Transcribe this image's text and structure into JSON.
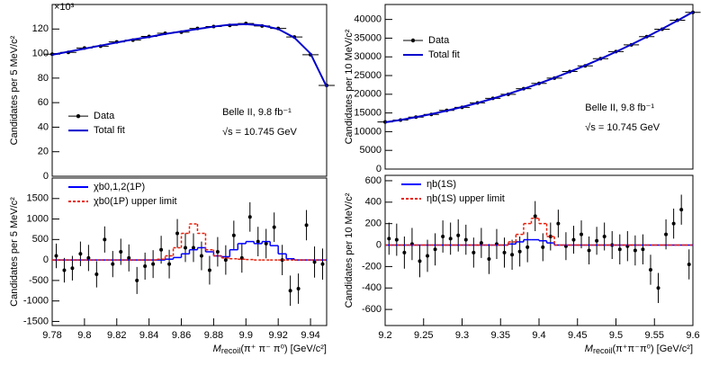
{
  "chart_data": [
    {
      "type": "line",
      "ylabel": "Candidates per 5 MeV/c²",
      "multiplier": "×10³",
      "annotations": [
        "Belle II, 9.8 fb⁻¹",
        "√s = 10.745 GeV"
      ],
      "legend": "center left",
      "xlim": [
        9.78,
        9.95
      ],
      "ylim": [
        0,
        140
      ],
      "yticks": [
        0,
        20,
        40,
        60,
        80,
        100,
        120
      ],
      "series": [
        {
          "name": "Data",
          "color": "#000000",
          "draw": "points",
          "x": [
            9.78,
            9.79,
            9.8,
            9.81,
            9.82,
            9.83,
            9.84,
            9.85,
            9.86,
            9.87,
            9.88,
            9.89,
            9.9,
            9.91,
            9.92,
            9.93,
            9.94,
            9.95
          ],
          "values": [
            99.5,
            101,
            104.5,
            106,
            109.5,
            111,
            114,
            116.5,
            117.5,
            120.5,
            122,
            123,
            124.5,
            122.5,
            120.5,
            113.5,
            99,
            74
          ]
        },
        {
          "name": "Total fit",
          "color": "#0000cc",
          "draw": "curve",
          "x": [
            9.78,
            9.79,
            9.8,
            9.81,
            9.82,
            9.83,
            9.84,
            9.85,
            9.86,
            9.87,
            9.88,
            9.89,
            9.9,
            9.91,
            9.92,
            9.93,
            9.94,
            9.95
          ],
          "values": [
            99,
            101.5,
            104,
            106.5,
            109,
            111.5,
            113.5,
            116,
            118,
            120,
            122,
            123.5,
            124,
            123,
            120,
            113,
            100,
            73
          ]
        }
      ]
    },
    {
      "type": "line",
      "ylabel": "Candidates per 5 MeV/c²",
      "legend": "top left",
      "xlabel": {
        "main": "M",
        "sub": "recoil",
        "rest": "(π⁺ π⁻ π⁰)  [GeV/c²]"
      },
      "xlim": [
        9.78,
        9.95
      ],
      "xticks": [
        9.78,
        9.8,
        9.82,
        9.84,
        9.86,
        9.88,
        9.9,
        9.92,
        9.94
      ],
      "ylim": [
        -1600,
        2000
      ],
      "yticks": [
        -1500,
        -1000,
        -500,
        0,
        500,
        1000,
        1500
      ],
      "x": [
        9.7825,
        9.7875,
        9.7925,
        9.7975,
        9.8025,
        9.8075,
        9.8125,
        9.8175,
        9.8225,
        9.8275,
        9.8325,
        9.8375,
        9.8425,
        9.8475,
        9.8525,
        9.8575,
        9.8625,
        9.8675,
        9.8725,
        9.8775,
        9.8825,
        9.8875,
        9.8925,
        9.8975,
        9.9025,
        9.9075,
        9.9125,
        9.9175,
        9.9225,
        9.9275,
        9.9325,
        9.9375,
        9.9425,
        9.9475
      ],
      "series": [
        {
          "draw": "points",
          "color": "#000000",
          "values": [
            100,
            -250,
            -200,
            150,
            50,
            -350,
            500,
            -100,
            200,
            50,
            -500,
            -150,
            -100,
            250,
            -100,
            650,
            300,
            300,
            100,
            -250,
            200,
            0,
            600,
            50,
            1050,
            450,
            400,
            800,
            0,
            -750,
            -700,
            850,
            -50,
            -100
          ],
          "errors": [
            300,
            300,
            300,
            300,
            320,
            320,
            320,
            320,
            320,
            330,
            330,
            330,
            340,
            340,
            350,
            350,
            350,
            350,
            350,
            350,
            360,
            360,
            360,
            360,
            360,
            360,
            360,
            360,
            370,
            370,
            370,
            370,
            380,
            380
          ]
        },
        {
          "name": "χb0,1,2(1P)",
          "color": "#0000ff",
          "draw": "steps",
          "values": [
            0,
            0,
            0,
            0,
            0,
            0,
            0,
            0,
            0,
            0,
            0,
            0,
            0,
            0,
            20,
            60,
            150,
            250,
            300,
            200,
            100,
            80,
            250,
            400,
            450,
            400,
            450,
            350,
            150,
            30,
            0,
            0,
            0,
            0
          ]
        },
        {
          "name": "χb0(1P) upper limit",
          "color": "#e8200c",
          "draw": "steps",
          "dashed": true,
          "values": [
            0,
            0,
            0,
            0,
            0,
            0,
            0,
            0,
            0,
            0,
            0,
            0,
            0,
            20,
            100,
            300,
            650,
            880,
            650,
            250,
            100,
            50,
            30,
            20,
            10,
            0,
            0,
            0,
            0,
            0,
            0,
            0,
            0,
            0
          ]
        }
      ]
    },
    {
      "type": "line",
      "ylabel": "Candidates per 10 MeV/c²",
      "annotations": [
        "Belle II, 9.8 fb⁻¹",
        "√s = 10.745 GeV"
      ],
      "legend": "upper left",
      "xlim": [
        9.2,
        9.6
      ],
      "ylim": [
        0,
        44000
      ],
      "yticks": [
        0,
        5000,
        10000,
        15000,
        20000,
        25000,
        30000,
        35000,
        40000
      ],
      "series": [
        {
          "name": "Data",
          "color": "#000000",
          "draw": "points",
          "x": [
            9.2,
            9.22,
            9.24,
            9.26,
            9.28,
            9.3,
            9.32,
            9.34,
            9.36,
            9.38,
            9.4,
            9.42,
            9.44,
            9.46,
            9.48,
            9.5,
            9.52,
            9.54,
            9.56,
            9.58,
            9.6
          ],
          "values": [
            12600,
            13100,
            13900,
            14600,
            15700,
            16500,
            17700,
            18900,
            20000,
            21500,
            22900,
            24300,
            26100,
            27600,
            29500,
            31400,
            33200,
            35400,
            37400,
            39800,
            41900
          ]
        },
        {
          "name": "Total fit",
          "color": "#0000cc",
          "draw": "curve",
          "x": [
            9.2,
            9.22,
            9.24,
            9.26,
            9.28,
            9.3,
            9.32,
            9.34,
            9.36,
            9.38,
            9.4,
            9.42,
            9.44,
            9.46,
            9.48,
            9.5,
            9.52,
            9.54,
            9.56,
            9.58,
            9.6
          ],
          "values": [
            12500,
            13144,
            13875,
            14694,
            15600,
            16594,
            17675,
            18844,
            20100,
            21444,
            22875,
            24394,
            26000,
            27694,
            29475,
            31344,
            33300,
            35344,
            37475,
            39694,
            42000
          ]
        }
      ]
    },
    {
      "type": "line",
      "ylabel": "Candidates per 10 MeV/c²",
      "legend": "top left",
      "xlabel": {
        "main": "M",
        "sub": "recoil",
        "rest": "(π⁺π⁻π⁰)  [GeV/c²]"
      },
      "xlim": [
        9.2,
        9.6
      ],
      "xticks": [
        9.2,
        9.25,
        9.3,
        9.35,
        9.4,
        9.45,
        9.5,
        9.55,
        9.6
      ],
      "ylim": [
        -750,
        650
      ],
      "yticks": [
        -600,
        -400,
        -200,
        0,
        200,
        400,
        600
      ],
      "x": [
        9.205,
        9.215,
        9.225,
        9.235,
        9.245,
        9.255,
        9.265,
        9.275,
        9.285,
        9.295,
        9.305,
        9.315,
        9.325,
        9.335,
        9.345,
        9.355,
        9.365,
        9.375,
        9.385,
        9.395,
        9.405,
        9.415,
        9.425,
        9.435,
        9.445,
        9.455,
        9.465,
        9.475,
        9.485,
        9.495,
        9.505,
        9.515,
        9.525,
        9.535,
        9.545,
        9.555,
        9.565,
        9.575,
        9.585,
        9.595
      ],
      "series": [
        {
          "draw": "points",
          "color": "#000000",
          "values": [
            60,
            50,
            -70,
            10,
            -150,
            -100,
            -40,
            80,
            60,
            90,
            50,
            -70,
            20,
            -130,
            10,
            -70,
            -90,
            -60,
            -20,
            270,
            -20,
            80,
            200,
            -10,
            50,
            100,
            -50,
            40,
            80,
            0,
            -40,
            -10,
            -50,
            -40,
            -230,
            -400,
            100,
            200,
            330,
            -180
          ],
          "errors": [
            150,
            150,
            150,
            150,
            150,
            150,
            150,
            150,
            150,
            150,
            140,
            140,
            140,
            140,
            140,
            140,
            140,
            140,
            140,
            140,
            130,
            130,
            130,
            130,
            130,
            130,
            130,
            130,
            130,
            130,
            140,
            140,
            140,
            140,
            140,
            140,
            140,
            140,
            140,
            140
          ]
        },
        {
          "name": "ηb(1S)",
          "color": "#0000ff",
          "draw": "steps",
          "values": [
            0,
            0,
            0,
            0,
            0,
            0,
            0,
            0,
            0,
            0,
            0,
            0,
            0,
            0,
            0,
            0,
            10,
            30,
            50,
            50,
            40,
            20,
            0,
            0,
            0,
            0,
            0,
            0,
            0,
            0,
            0,
            0,
            0,
            0,
            0,
            0,
            0,
            0,
            0,
            0
          ]
        },
        {
          "name": "ηb(1S) upper limit",
          "color": "#e8200c",
          "draw": "steps",
          "dashed": true,
          "values": [
            0,
            0,
            0,
            0,
            0,
            0,
            0,
            0,
            0,
            0,
            0,
            0,
            0,
            0,
            0,
            0,
            30,
            100,
            200,
            250,
            200,
            80,
            0,
            0,
            0,
            0,
            0,
            0,
            0,
            0,
            0,
            0,
            0,
            0,
            0,
            0,
            0,
            0,
            0,
            0
          ]
        }
      ]
    }
  ]
}
